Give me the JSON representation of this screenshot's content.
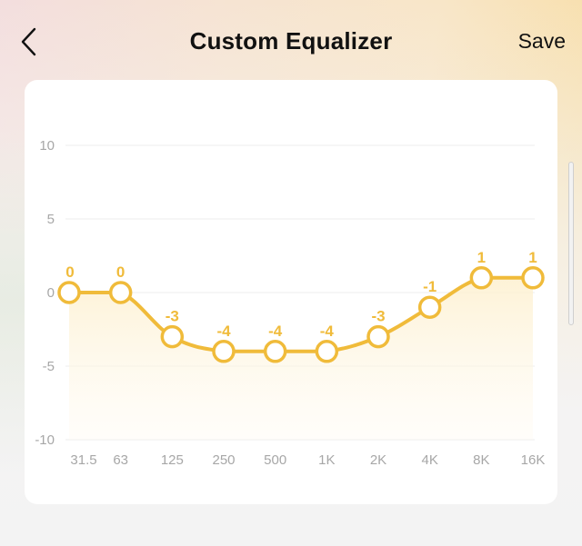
{
  "header": {
    "back_icon": "chevron-left-icon",
    "title": "Custom Equalizer",
    "save_label": "Save"
  },
  "colors": {
    "accent": "#f0bb3a",
    "grid": "#ececec",
    "axis_text": "#a7a7a7"
  },
  "chart_data": {
    "type": "line",
    "categories": [
      "31.5",
      "63",
      "125",
      "250",
      "500",
      "1K",
      "2K",
      "4K",
      "8K",
      "16K"
    ],
    "series": [
      {
        "values": [
          0,
          0,
          -3,
          -4,
          -4,
          -4,
          -3,
          -1,
          1,
          1
        ]
      }
    ],
    "value_labels": [
      "0",
      "0",
      "-3",
      "-4",
      "-4",
      "-4",
      "-3",
      "-1",
      "1",
      "1"
    ],
    "yticks": [
      "10",
      "5",
      "0",
      "-5",
      "-10"
    ],
    "ylim": [
      -10,
      10
    ],
    "grid": true
  }
}
